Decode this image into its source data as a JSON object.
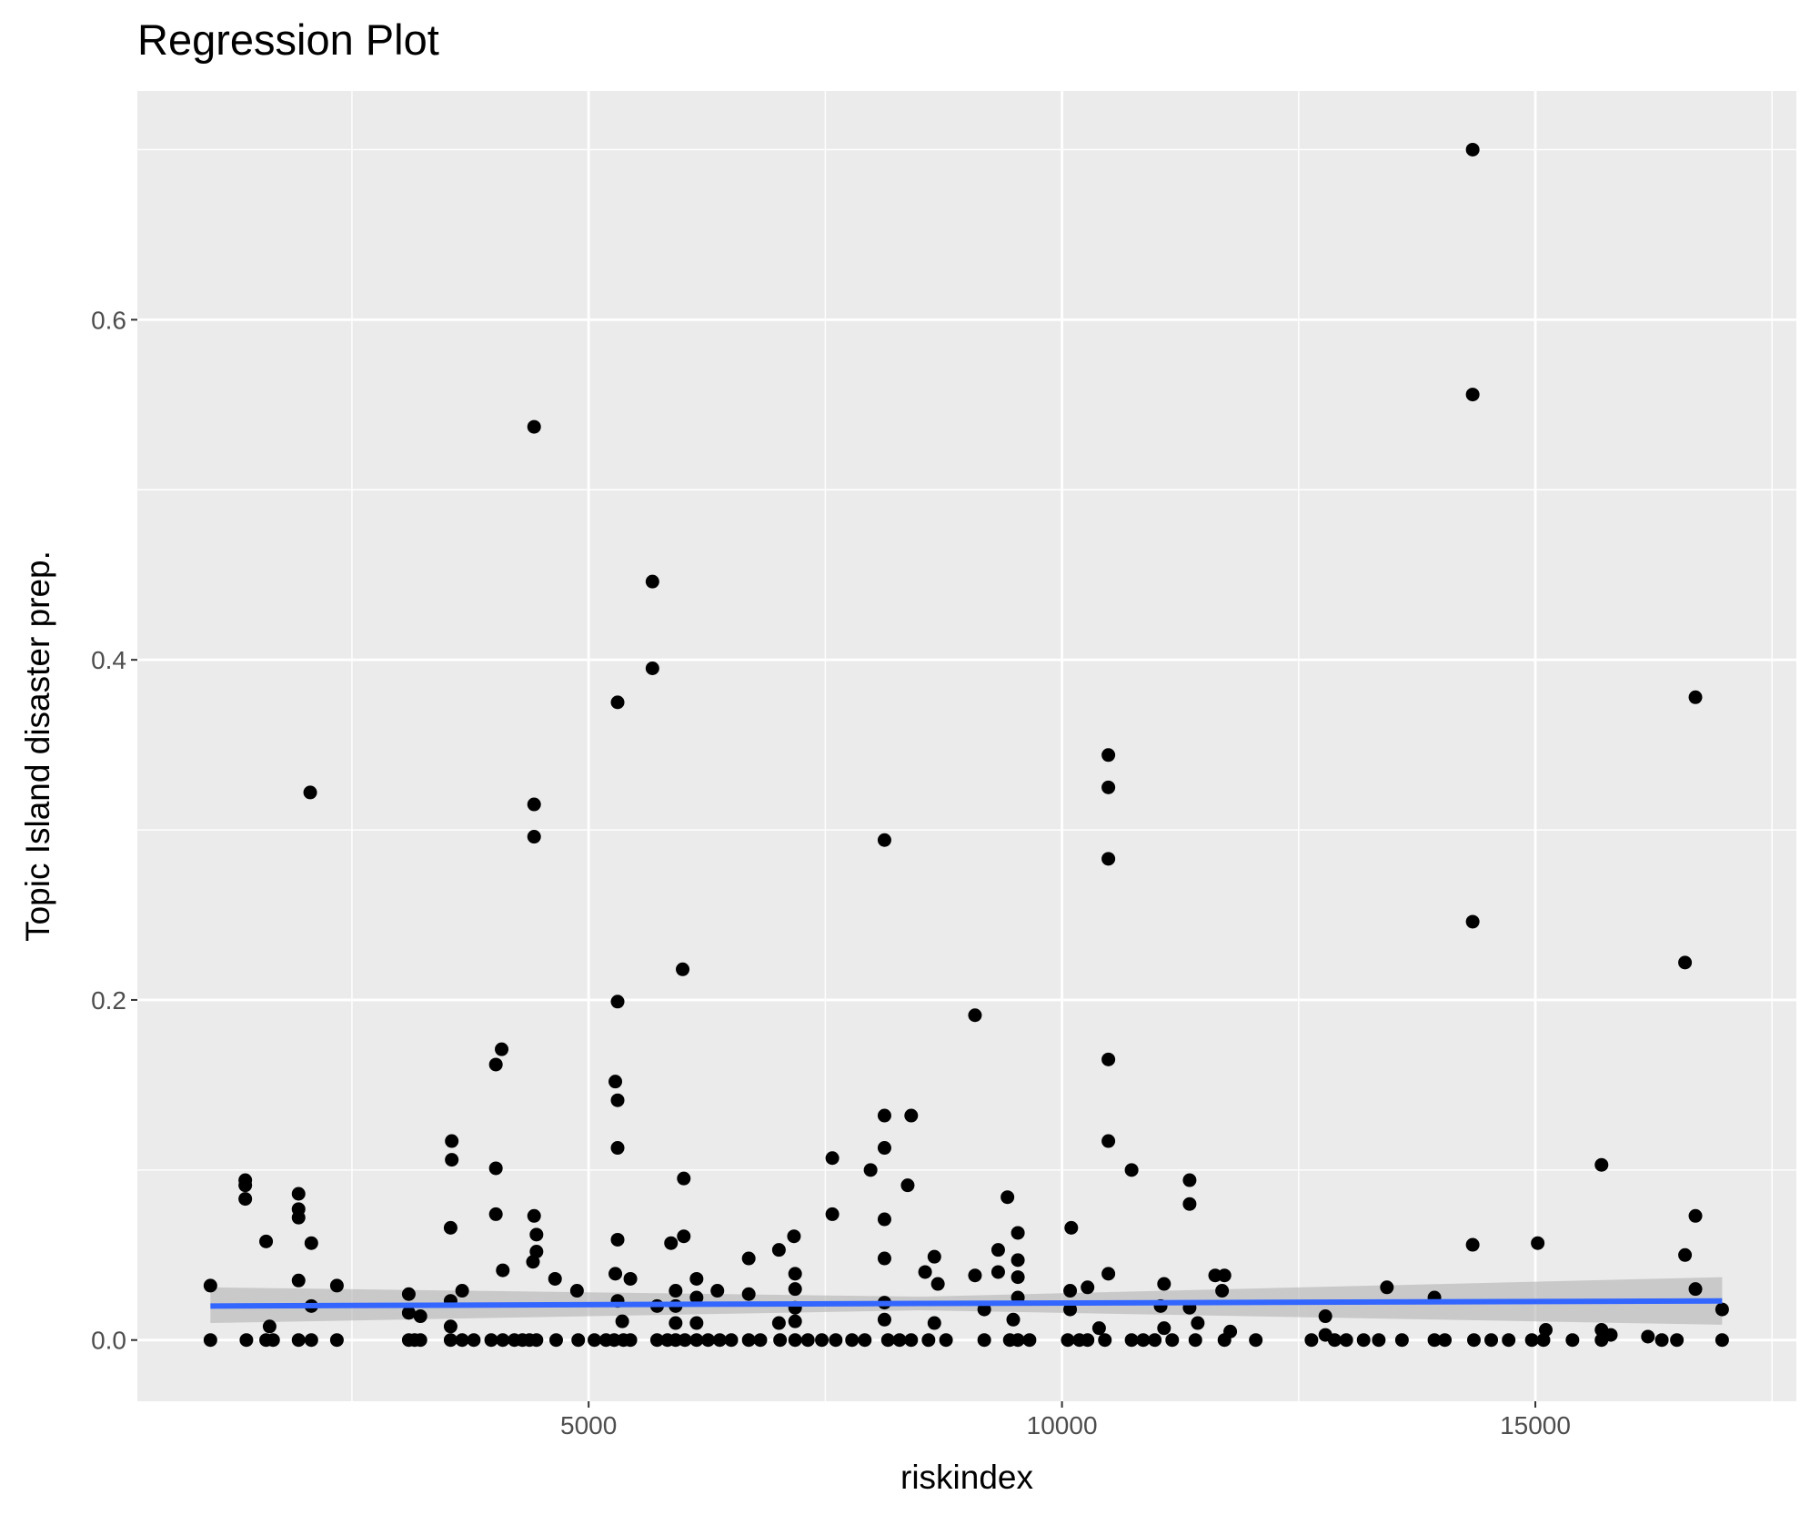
{
  "chart_data": {
    "type": "scatter",
    "title": "Regression Plot",
    "xlabel": "riskindex",
    "ylabel": "Topic Island disaster prep.",
    "xlim": [
      233,
      17757
    ],
    "ylim": [
      -0.036,
      0.7345
    ],
    "grid": true,
    "x_major_ticks": [
      5000,
      10000,
      15000
    ],
    "x_tick_labels": [
      "5000",
      "10000",
      "15000"
    ],
    "x_minor_ticks": [
      2500,
      7500,
      12500,
      17500
    ],
    "y_major_ticks": [
      0.0,
      0.2,
      0.4,
      0.6
    ],
    "y_tick_labels": [
      "0.0",
      "0.2",
      "0.4",
      "0.6"
    ],
    "y_minor_ticks": [
      0.1,
      0.3,
      0.5,
      0.7
    ],
    "colors": {
      "panel": "#ebebeb",
      "grid": "#ffffff",
      "points": "#000000",
      "line": "#3366ff",
      "band": "#b3b3b3"
    },
    "regression": {
      "x": [
        1005,
        8500,
        16973
      ],
      "fit": [
        0.02,
        0.0215,
        0.023
      ],
      "lower": [
        0.01,
        0.0175,
        0.009
      ],
      "upper": [
        0.031,
        0.0255,
        0.037
      ]
    },
    "points": [
      [
        1005,
        0.032
      ],
      [
        1005,
        0
      ],
      [
        1373,
        0.094
      ],
      [
        1373,
        0.091
      ],
      [
        1373,
        0.083
      ],
      [
        1385,
        0
      ],
      [
        1593,
        0.058
      ],
      [
        1630,
        0.008
      ],
      [
        1593,
        0
      ],
      [
        1667,
        0
      ],
      [
        1936,
        0.086
      ],
      [
        1936,
        0.077
      ],
      [
        1936,
        0.072
      ],
      [
        1936,
        0.035
      ],
      [
        1936,
        0
      ],
      [
        2059,
        0.322
      ],
      [
        2071,
        0.057
      ],
      [
        2071,
        0.02
      ],
      [
        2071,
        0
      ],
      [
        2341,
        0.032
      ],
      [
        2341,
        0
      ],
      [
        3100,
        0.027
      ],
      [
        3100,
        0.016
      ],
      [
        3100,
        0
      ],
      [
        3162,
        0
      ],
      [
        3223,
        0
      ],
      [
        3223,
        0.014
      ],
      [
        3554,
        0.117
      ],
      [
        3554,
        0.106
      ],
      [
        3542,
        0.066
      ],
      [
        3542,
        0.023
      ],
      [
        3542,
        0.008
      ],
      [
        3542,
        0
      ],
      [
        3664,
        0
      ],
      [
        3787,
        0
      ],
      [
        3664,
        0.029
      ],
      [
        4020,
        0.101
      ],
      [
        4020,
        0.162
      ],
      [
        4081,
        0.171
      ],
      [
        4020,
        0.074
      ],
      [
        4093,
        0.041
      ],
      [
        3971,
        0
      ],
      [
        4093,
        0
      ],
      [
        4216,
        0
      ],
      [
        4301,
        0
      ],
      [
        4375,
        0
      ],
      [
        4449,
        0
      ],
      [
        4424,
        0.537
      ],
      [
        4424,
        0.315
      ],
      [
        4424,
        0.296
      ],
      [
        4424,
        0.073
      ],
      [
        4449,
        0.062
      ],
      [
        4449,
        0.052
      ],
      [
        4412,
        0.046
      ],
      [
        4645,
        0.036
      ],
      [
        4657,
        0
      ],
      [
        4877,
        0.029
      ],
      [
        4890,
        0
      ],
      [
        5061,
        0
      ],
      [
        5184,
        0
      ],
      [
        5270,
        0
      ],
      [
        5368,
        0
      ],
      [
        5441,
        0
      ],
      [
        5306,
        0.375
      ],
      [
        5306,
        0.199
      ],
      [
        5282,
        0.152
      ],
      [
        5306,
        0.141
      ],
      [
        5306,
        0.113
      ],
      [
        5306,
        0.059
      ],
      [
        5282,
        0.039
      ],
      [
        5306,
        0.023
      ],
      [
        5355,
        0.011
      ],
      [
        5441,
        0.036
      ],
      [
        5674,
        0.446
      ],
      [
        5674,
        0.395
      ],
      [
        5723,
        0.02
      ],
      [
        5723,
        0
      ],
      [
        5993,
        0.218
      ],
      [
        6005,
        0.095
      ],
      [
        6005,
        0.061
      ],
      [
        5870,
        0.057
      ],
      [
        5919,
        0.029
      ],
      [
        5919,
        0.02
      ],
      [
        5919,
        0.01
      ],
      [
        5833,
        0
      ],
      [
        5919,
        0
      ],
      [
        6017,
        0
      ],
      [
        6140,
        0.036
      ],
      [
        6140,
        0.025
      ],
      [
        6140,
        0.01
      ],
      [
        6140,
        0
      ],
      [
        6262,
        0
      ],
      [
        6360,
        0.029
      ],
      [
        6385,
        0
      ],
      [
        6507,
        0
      ],
      [
        6691,
        0.048
      ],
      [
        6691,
        0.027
      ],
      [
        6691,
        0
      ],
      [
        6814,
        0
      ],
      [
        7010,
        0.053
      ],
      [
        7010,
        0.01
      ],
      [
        7169,
        0.061
      ],
      [
        7181,
        0.039
      ],
      [
        7181,
        0.03
      ],
      [
        7181,
        0.019
      ],
      [
        7181,
        0.011
      ],
      [
        7022,
        0
      ],
      [
        7181,
        0
      ],
      [
        7316,
        0
      ],
      [
        7463,
        0
      ],
      [
        7574,
        0.107
      ],
      [
        7574,
        0.074
      ],
      [
        7610,
        0
      ],
      [
        7782,
        0
      ],
      [
        7917,
        0
      ],
      [
        7978,
        0.1
      ],
      [
        8125,
        0.132
      ],
      [
        8125,
        0.113
      ],
      [
        8125,
        0.294
      ],
      [
        8125,
        0.071
      ],
      [
        8125,
        0.048
      ],
      [
        8125,
        0.022
      ],
      [
        8125,
        0.012
      ],
      [
        8162,
        0
      ],
      [
        8284,
        0
      ],
      [
        8407,
        0
      ],
      [
        8407,
        0.132
      ],
      [
        8370,
        0.091
      ],
      [
        8554,
        0.04
      ],
      [
        8652,
        0.049
      ],
      [
        8689,
        0.033
      ],
      [
        8652,
        0.01
      ],
      [
        8590,
        0
      ],
      [
        8775,
        0
      ],
      [
        9081,
        0.191
      ],
      [
        9081,
        0.038
      ],
      [
        9179,
        0.018
      ],
      [
        9179,
        0
      ],
      [
        9326,
        0.053
      ],
      [
        9326,
        0.04
      ],
      [
        9424,
        0.084
      ],
      [
        9534,
        0.063
      ],
      [
        9534,
        0.047
      ],
      [
        9534,
        0.037
      ],
      [
        9534,
        0.025
      ],
      [
        9485,
        0.012
      ],
      [
        9449,
        0
      ],
      [
        9534,
        0
      ],
      [
        9657,
        0
      ],
      [
        10098,
        0.066
      ],
      [
        10086,
        0.029
      ],
      [
        10086,
        0.018
      ],
      [
        10061,
        0
      ],
      [
        10184,
        0
      ],
      [
        10270,
        0.031
      ],
      [
        10270,
        0
      ],
      [
        10392,
        0.007
      ],
      [
        10453,
        0
      ],
      [
        10490,
        0.344
      ],
      [
        10490,
        0.325
      ],
      [
        10490,
        0.283
      ],
      [
        10490,
        0.165
      ],
      [
        10490,
        0.117
      ],
      [
        10490,
        0.039
      ],
      [
        10735,
        0.1
      ],
      [
        10735,
        0
      ],
      [
        10858,
        0
      ],
      [
        10980,
        0
      ],
      [
        11042,
        0.02
      ],
      [
        11078,
        0.033
      ],
      [
        11078,
        0.007
      ],
      [
        11164,
        0
      ],
      [
        11348,
        0.094
      ],
      [
        11348,
        0.08
      ],
      [
        11348,
        0.019
      ],
      [
        11434,
        0.01
      ],
      [
        11409,
        0
      ],
      [
        11618,
        0.038
      ],
      [
        11716,
        0.038
      ],
      [
        11691,
        0.029
      ],
      [
        11777,
        0.005
      ],
      [
        11716,
        0
      ],
      [
        12047,
        0
      ],
      [
        12635,
        0
      ],
      [
        12782,
        0.014
      ],
      [
        12782,
        0.003
      ],
      [
        12880,
        0
      ],
      [
        13003,
        0
      ],
      [
        13186,
        0
      ],
      [
        13346,
        0
      ],
      [
        13432,
        0.031
      ],
      [
        13591,
        0
      ],
      [
        13934,
        0.025
      ],
      [
        13934,
        0
      ],
      [
        14044,
        0
      ],
      [
        14338,
        0.7
      ],
      [
        14338,
        0.556
      ],
      [
        14338,
        0.246
      ],
      [
        14338,
        0.056
      ],
      [
        14351,
        0
      ],
      [
        14534,
        0
      ],
      [
        14718,
        0
      ],
      [
        14963,
        0
      ],
      [
        15025,
        0.057
      ],
      [
        15086,
        0
      ],
      [
        15110,
        0.006
      ],
      [
        15392,
        0
      ],
      [
        15699,
        0.103
      ],
      [
        15699,
        0.006
      ],
      [
        15699,
        0
      ],
      [
        15797,
        0.003
      ],
      [
        16189,
        0.002
      ],
      [
        16336,
        0
      ],
      [
        16495,
        0
      ],
      [
        16581,
        0.05
      ],
      [
        16581,
        0.222
      ],
      [
        16691,
        0.378
      ],
      [
        16691,
        0.073
      ],
      [
        16691,
        0.03
      ],
      [
        16973,
        0.018
      ],
      [
        16973,
        0
      ]
    ]
  }
}
